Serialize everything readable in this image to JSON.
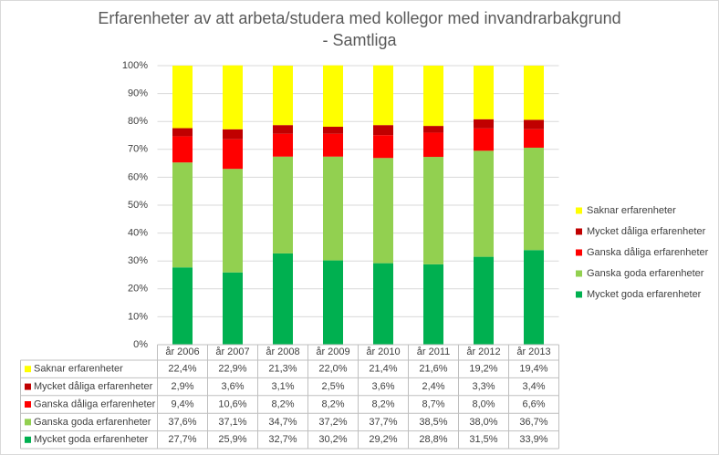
{
  "chart_data": {
    "type": "stacked_bar",
    "title": "Erfarenheter av att arbeta/studera med kollegor med invandrarbakgrund",
    "subtitle": "- Samtliga",
    "categories": [
      "år 2006",
      "år 2007",
      "år 2008",
      "år 2009",
      "år 2010",
      "år 2011",
      "år 2012",
      "år 2013"
    ],
    "series": [
      {
        "name": "Saknar erfarenheter",
        "color": "#ffff00",
        "values": [
          22.4,
          22.9,
          21.3,
          22.0,
          21.4,
          21.6,
          19.2,
          19.4
        ],
        "value_labels": [
          "22,4%",
          "22,9%",
          "21,3%",
          "22,0%",
          "21,4%",
          "21,6%",
          "19,2%",
          "19,4%"
        ]
      },
      {
        "name": "Mycket dåliga erfarenheter",
        "color": "#c00000",
        "values": [
          2.9,
          3.6,
          3.1,
          2.5,
          3.6,
          2.4,
          3.3,
          3.4
        ],
        "value_labels": [
          "2,9%",
          "3,6%",
          "3,1%",
          "2,5%",
          "3,6%",
          "2,4%",
          "3,3%",
          "3,4%"
        ]
      },
      {
        "name": "Ganska dåliga erfarenheter",
        "color": "#ff0000",
        "values": [
          9.4,
          10.6,
          8.2,
          8.2,
          8.2,
          8.7,
          8.0,
          6.6
        ],
        "value_labels": [
          "9,4%",
          "10,6%",
          "8,2%",
          "8,2%",
          "8,2%",
          "8,7%",
          "8,0%",
          "6,6%"
        ]
      },
      {
        "name": "Ganska goda erfarenheter",
        "color": "#92d050",
        "values": [
          37.6,
          37.1,
          34.7,
          37.2,
          37.7,
          38.5,
          38.0,
          36.7
        ],
        "value_labels": [
          "37,6%",
          "37,1%",
          "34,7%",
          "37,2%",
          "37,7%",
          "38,5%",
          "38,0%",
          "36,7%"
        ]
      },
      {
        "name": "Mycket goda erfarenheter",
        "color": "#00b050",
        "values": [
          27.7,
          25.9,
          32.7,
          30.2,
          29.2,
          28.8,
          31.5,
          33.9
        ],
        "value_labels": [
          "27,7%",
          "25,9%",
          "32,7%",
          "30,2%",
          "29,2%",
          "28,8%",
          "31,5%",
          "33,9%"
        ]
      }
    ],
    "ylim": [
      0,
      100
    ],
    "yticks": [
      {
        "value": 0,
        "label": "0%"
      },
      {
        "value": 10,
        "label": "10%"
      },
      {
        "value": 20,
        "label": "20%"
      },
      {
        "value": 30,
        "label": "30%"
      },
      {
        "value": 40,
        "label": "40%"
      },
      {
        "value": 50,
        "label": "50%"
      },
      {
        "value": 60,
        "label": "60%"
      },
      {
        "value": 70,
        "label": "70%"
      },
      {
        "value": 80,
        "label": "80%"
      },
      {
        "value": 90,
        "label": "90%"
      },
      {
        "value": 100,
        "label": "100%"
      }
    ],
    "grid": true,
    "legend": "right"
  }
}
